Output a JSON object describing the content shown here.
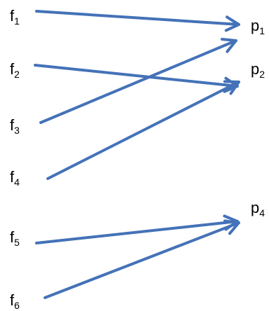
{
  "diagram": {
    "arrow_color": "#4472b8",
    "sources": [
      {
        "id": "f1",
        "letter": "f",
        "sub": "1"
      },
      {
        "id": "f2",
        "letter": "f",
        "sub": "2"
      },
      {
        "id": "f3",
        "letter": "f",
        "sub": "3"
      },
      {
        "id": "f4",
        "letter": "f",
        "sub": "4"
      },
      {
        "id": "f5",
        "letter": "f",
        "sub": "5"
      },
      {
        "id": "f6",
        "letter": "f",
        "sub": "6"
      }
    ],
    "targets": [
      {
        "id": "p1",
        "letter": "p",
        "sub": "1"
      },
      {
        "id": "p2",
        "letter": "p",
        "sub": "2"
      },
      {
        "id": "p4",
        "letter": "p",
        "sub": "4"
      }
    ],
    "edges": [
      {
        "from": "f1",
        "to": "p1"
      },
      {
        "from": "f2",
        "to": "p2"
      },
      {
        "from": "f3",
        "to": "p1"
      },
      {
        "from": "f4",
        "to": "p2"
      },
      {
        "from": "f5",
        "to": "p4"
      },
      {
        "from": "f6",
        "to": "p4"
      }
    ]
  }
}
